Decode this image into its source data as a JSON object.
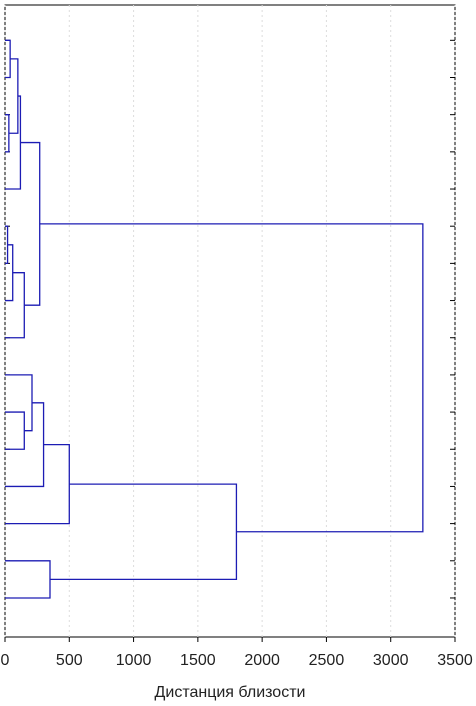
{
  "chart_data": {
    "type": "dendrogram",
    "xlabel": "Дистанция близости",
    "color": "#1c1cb4",
    "xlim": [
      0,
      3500
    ],
    "xticks": [
      0,
      500,
      1000,
      1500,
      2000,
      2500,
      3000,
      3500
    ],
    "grid": true,
    "merges": [
      {
        "a": 0,
        "b": 1,
        "distance": 40
      },
      {
        "a": 2,
        "b": 3,
        "distance": 30
      },
      {
        "a": 16,
        "b": 17,
        "distance": 100
      },
      {
        "a": 18,
        "b": 4,
        "distance": 120
      },
      {
        "a": 5,
        "b": 6,
        "distance": 20
      },
      {
        "a": 20,
        "b": 7,
        "distance": 60
      },
      {
        "a": 21,
        "b": 8,
        "distance": 150
      },
      {
        "a": 19,
        "b": 22,
        "distance": 270
      },
      {
        "a": 10,
        "b": 11,
        "distance": 150
      },
      {
        "a": 9,
        "b": 24,
        "distance": 210
      },
      {
        "a": 25,
        "b": 12,
        "distance": 300
      },
      {
        "a": 26,
        "b": 13,
        "distance": 500
      },
      {
        "a": 14,
        "b": 15,
        "distance": 350
      },
      {
        "a": 27,
        "b": 28,
        "distance": 1800
      },
      {
        "a": 23,
        "b": 29,
        "distance": 3250
      }
    ]
  }
}
